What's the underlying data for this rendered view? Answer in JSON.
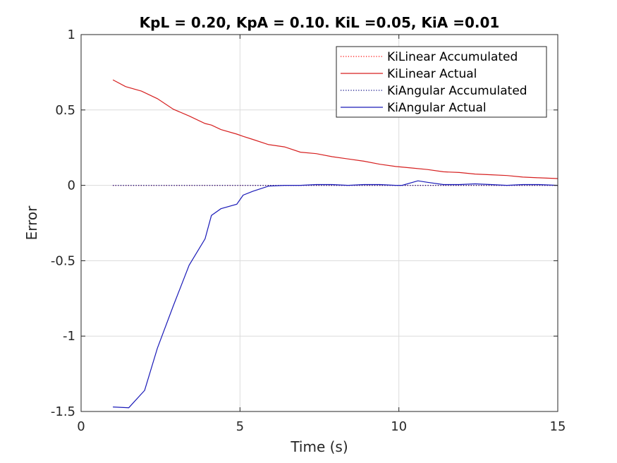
{
  "chart_data": {
    "type": "line",
    "title": "KpL = 0.20, KpA = 0.10. KiL =0.05, KiA =0.01",
    "xlabel": "Time (s)",
    "ylabel": "Error",
    "xlim": [
      0,
      15
    ],
    "ylim": [
      -1.5,
      1
    ],
    "xticks": [
      0,
      5,
      10,
      15
    ],
    "xtick_labels": [
      "0",
      "5",
      "10",
      "15"
    ],
    "yticks": [
      -1.5,
      -1,
      -0.5,
      0,
      0.5,
      1
    ],
    "ytick_labels": [
      "-1.5",
      "-1",
      "-0.5",
      "0",
      "0.5",
      "1"
    ],
    "grid": true,
    "legend_position": "top-right",
    "series": [
      {
        "name": "KiLinear Accumulated",
        "color": "#ff0000",
        "style": "dotted",
        "x": [
          1,
          15
        ],
        "y": [
          0,
          0
        ]
      },
      {
        "name": "KiLinear Actual",
        "color": "#d62020",
        "style": "solid",
        "x": [
          1.0,
          1.4,
          1.9,
          2.4,
          2.9,
          3.4,
          3.9,
          4.1,
          4.4,
          4.9,
          5.1,
          5.4,
          5.9,
          6.4,
          6.9,
          7.4,
          7.9,
          8.4,
          8.9,
          9.4,
          9.9,
          10.4,
          10.9,
          11.4,
          11.9,
          12.4,
          12.9,
          13.4,
          13.9,
          14.4,
          15.0
        ],
        "y": [
          0.7,
          0.655,
          0.625,
          0.575,
          0.505,
          0.46,
          0.41,
          0.4,
          0.37,
          0.34,
          0.325,
          0.305,
          0.27,
          0.255,
          0.22,
          0.21,
          0.19,
          0.175,
          0.16,
          0.14,
          0.125,
          0.115,
          0.105,
          0.09,
          0.085,
          0.075,
          0.07,
          0.065,
          0.055,
          0.05,
          0.045
        ]
      },
      {
        "name": "KiAngular Accumulated",
        "color": "#000080",
        "style": "dotted",
        "x": [
          1,
          15
        ],
        "y": [
          0,
          0
        ]
      },
      {
        "name": "KiAngular Actual",
        "color": "#1a1ab8",
        "style": "solid",
        "x": [
          1.0,
          1.5,
          2.0,
          2.4,
          2.9,
          3.4,
          3.9,
          4.1,
          4.4,
          4.9,
          5.1,
          5.4,
          5.9,
          6.4,
          6.9,
          7.4,
          7.9,
          8.4,
          8.9,
          9.4,
          9.9,
          10.1,
          10.6,
          10.9,
          11.4,
          11.9,
          12.4,
          12.9,
          13.4,
          13.9,
          14.4,
          15.0
        ],
        "y": [
          -1.47,
          -1.475,
          -1.36,
          -1.08,
          -0.8,
          -0.53,
          -0.355,
          -0.2,
          -0.155,
          -0.125,
          -0.065,
          -0.04,
          -0.005,
          0.0,
          0.0,
          0.005,
          0.005,
          0.0,
          0.005,
          0.005,
          0.0,
          0.0,
          0.03,
          0.02,
          0.005,
          0.005,
          0.01,
          0.005,
          0.0,
          0.005,
          0.005,
          0.0
        ]
      }
    ]
  }
}
